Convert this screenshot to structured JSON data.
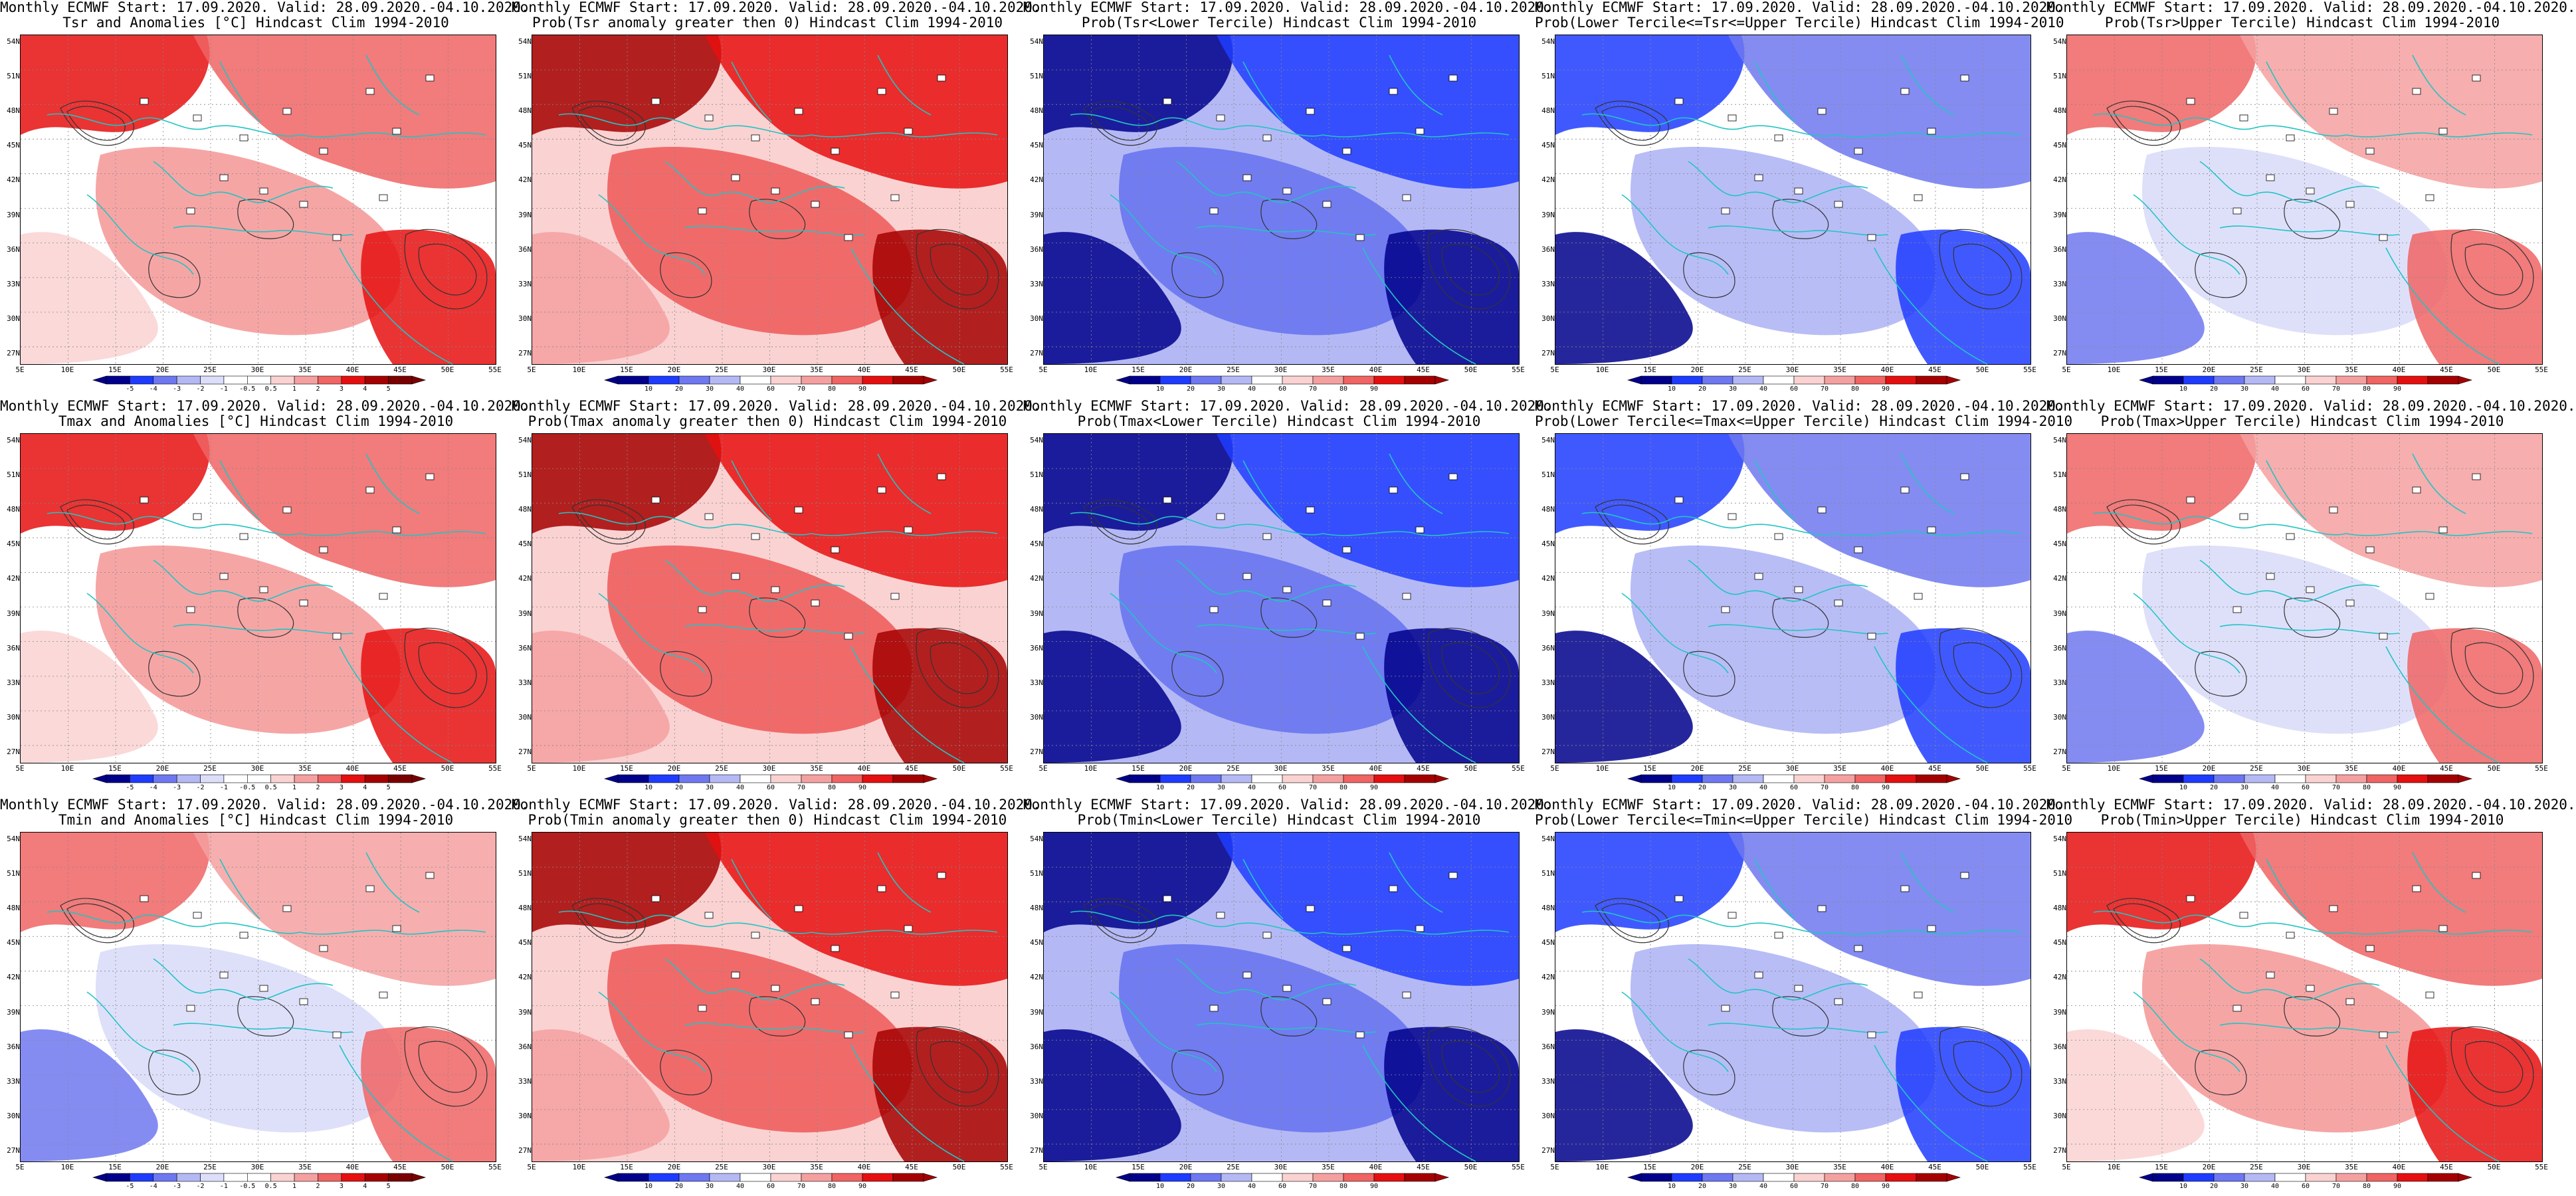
{
  "colors": {
    "dark_blue": "#00008b",
    "blue": "#1e3cff",
    "mid_blue": "#6e78f0",
    "light_blue": "#b4b9f5",
    "pale_blue": "#dcdefa",
    "white": "#ffffff",
    "pale_red": "#fad2d2",
    "light_red": "#f5a0a0",
    "mid_red": "#f06464",
    "red": "#e60f0f",
    "dark_red": "#a50000",
    "coast": "#22c4c4",
    "contour": "#333333"
  },
  "axes": {
    "lat_labels": [
      "54N",
      "51N",
      "48N",
      "45N",
      "42N",
      "39N",
      "36N",
      "33N",
      "30N",
      "27N"
    ],
    "lon_labels": [
      "5E",
      "10E",
      "15E",
      "20E",
      "25E",
      "30E",
      "35E",
      "40E",
      "45E",
      "50E",
      "55E"
    ]
  },
  "colorbars": {
    "anomaly": [
      "-5",
      "-4",
      "-3",
      "-2",
      "-1",
      "-0.5",
      "0.5",
      "1",
      "2",
      "3",
      "4",
      "5"
    ],
    "probability": [
      "10",
      "20",
      "30",
      "40",
      "60",
      "70",
      "80",
      "90"
    ]
  },
  "rows": [
    {
      "variable": "Tsr",
      "panels": [
        {
          "line1": "Monthly ECMWF Start: 17.09.2020. Valid: 28.09.2020.-04.10.2020.",
          "line2": "Tsr and Anomalies [°C] Hindcast Clim 1994-2010",
          "kind": "anomaly",
          "level": 2
        },
        {
          "line1": "Monthly ECMWF Start: 17.09.2020. Valid: 28.09.2020.-04.10.2020.",
          "line2": "Prob(Tsr anomaly greater then 0) Hindcast Clim 1994-2010",
          "kind": "probability",
          "level": 3
        },
        {
          "line1": "Monthly ECMWF Start: 17.09.2020. Valid: 28.09.2020.-04.10.2020.",
          "line2": "Prob(Tsr<Lower Tercile) Hindcast Clim 1994-2010",
          "kind": "probability",
          "level": -3
        },
        {
          "line1": "Monthly ECMWF Start: 17.09.2020. Valid: 28.09.2020.-04.10.2020.",
          "line2": "Prob(Lower Tercile<=Tsr<=Upper Tercile) Hindcast Clim 1994-2010",
          "kind": "probability",
          "level": -2
        },
        {
          "line1": "Monthly ECMWF Start: 17.09.2020. Valid: 28.09.2020.-04.10.2020.",
          "line2": "Prob(Tsr>Upper Tercile) Hindcast Clim 1994-2010",
          "kind": "probability",
          "level": 1
        }
      ]
    },
    {
      "variable": "Tmax",
      "panels": [
        {
          "line1": "Monthly ECMWF Start: 17.09.2020. Valid: 28.09.2020.-04.10.2020.",
          "line2": "Tmax and Anomalies [°C] Hindcast Clim 1994-2010",
          "kind": "anomaly",
          "level": 2
        },
        {
          "line1": "Monthly ECMWF Start: 17.09.2020. Valid: 28.09.2020.-04.10.2020.",
          "line2": "Prob(Tmax anomaly greater then 0) Hindcast Clim 1994-2010",
          "kind": "probability",
          "level": 3
        },
        {
          "line1": "Monthly ECMWF Start: 17.09.2020. Valid: 28.09.2020.-04.10.2020.",
          "line2": "Prob(Tmax<Lower Tercile) Hindcast Clim 1994-2010",
          "kind": "probability",
          "level": -3
        },
        {
          "line1": "Monthly ECMWF Start: 17.09.2020. Valid: 28.09.2020.-04.10.2020.",
          "line2": "Prob(Lower Tercile<=Tmax<=Upper Tercile) Hindcast Clim 1994-2010",
          "kind": "probability",
          "level": -2
        },
        {
          "line1": "Monthly ECMWF Start: 17.09.2020. Valid: 28.09.2020.-04.10.2020.",
          "line2": "Prob(Tmax>Upper Tercile) Hindcast Clim 1994-2010",
          "kind": "probability",
          "level": 1
        }
      ]
    },
    {
      "variable": "Tmin",
      "panels": [
        {
          "line1": "Monthly ECMWF Start: 17.09.2020. Valid: 28.09.2020.-04.10.2020.",
          "line2": "Tmin and Anomalies [°C] Hindcast Clim 1994-2010",
          "kind": "anomaly",
          "level": 1
        },
        {
          "line1": "Monthly ECMWF Start: 17.09.2020. Valid: 28.09.2020.-04.10.2020.",
          "line2": "Prob(Tmin anomaly greater then 0) Hindcast Clim 1994-2010",
          "kind": "probability",
          "level": 3
        },
        {
          "line1": "Monthly ECMWF Start: 17.09.2020. Valid: 28.09.2020.-04.10.2020.",
          "line2": "Prob(Tmin<Lower Tercile) Hindcast Clim 1994-2010",
          "kind": "probability",
          "level": -3
        },
        {
          "line1": "Monthly ECMWF Start: 17.09.2020. Valid: 28.09.2020.-04.10.2020.",
          "line2": "Prob(Lower Tercile<=Tmin<=Upper Tercile) Hindcast Clim 1994-2010",
          "kind": "probability",
          "level": -2
        },
        {
          "line1": "Monthly ECMWF Start: 17.09.2020. Valid: 28.09.2020.-04.10.2020.",
          "line2": "Prob(Tmin>Upper Tercile) Hindcast Clim 1994-2010",
          "kind": "probability",
          "level": 2
        }
      ]
    }
  ]
}
